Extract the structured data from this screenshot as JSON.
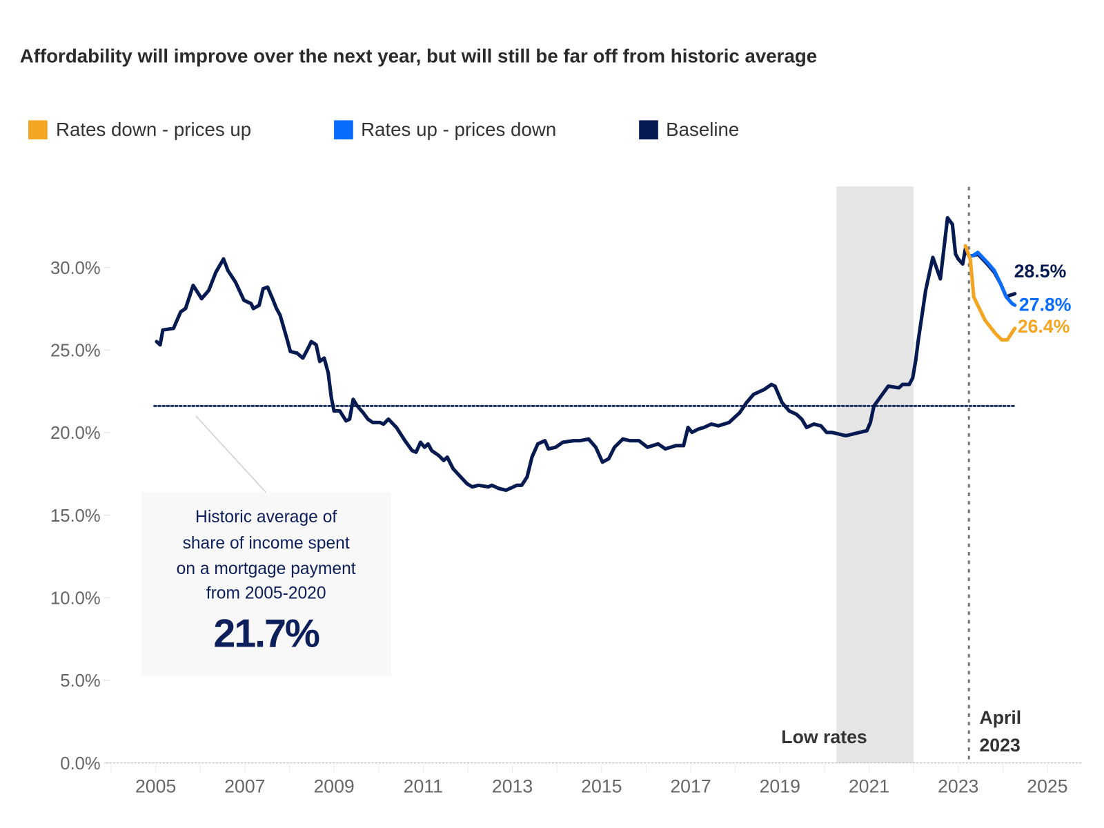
{
  "chart_data": {
    "type": "line",
    "title": "Affordability will improve over the next year, but will still be far off from historic average",
    "xlabel": "",
    "ylabel": "",
    "xlim": [
      2003.9,
      2025.8
    ],
    "ylim": [
      0,
      35
    ],
    "grid": false,
    "legend_placement": "top-left",
    "x_ticks": [
      "2005",
      "2007",
      "2009",
      "2011",
      "2013",
      "2015",
      "2017",
      "2019",
      "2021",
      "2023",
      "2025"
    ],
    "y_ticks": [
      "0.0%",
      "5.0%",
      "10.0%",
      "15.0%",
      "20.0%",
      "25.0%",
      "30.0%"
    ],
    "legend": [
      {
        "label": "Rates down - prices up",
        "color": "#f5a524"
      },
      {
        "label": "Rates up - prices down",
        "color": "#0a6cff"
      },
      {
        "label": "Baseline",
        "color": "#061a52"
      }
    ],
    "series": [
      {
        "name": "Baseline",
        "color": "#061a52",
        "x": [
          2005.02,
          2005.1,
          2005.16,
          2005.4,
          2005.56,
          2005.67,
          2005.84,
          2006.03,
          2006.19,
          2006.35,
          2006.52,
          2006.62,
          2006.79,
          2006.98,
          2007.14,
          2007.19,
          2007.32,
          2007.41,
          2007.51,
          2007.62,
          2007.71,
          2007.79,
          2007.95,
          2008.02,
          2008.17,
          2008.3,
          2008.4,
          2008.49,
          2008.6,
          2008.68,
          2008.78,
          2008.87,
          2008.94,
          2009.0,
          2009.13,
          2009.27,
          2009.35,
          2009.43,
          2009.52,
          2009.65,
          2009.76,
          2009.87,
          2010.03,
          2010.11,
          2010.22,
          2010.4,
          2010.59,
          2010.75,
          2010.84,
          2010.94,
          2011.03,
          2011.11,
          2011.19,
          2011.35,
          2011.46,
          2011.54,
          2011.67,
          2011.98,
          2012.1,
          2012.24,
          2012.46,
          2012.54,
          2012.7,
          2012.86,
          2013.1,
          2013.21,
          2013.33,
          2013.44,
          2013.57,
          2013.73,
          2013.81,
          2013.97,
          2014.13,
          2014.37,
          2014.52,
          2014.71,
          2014.87,
          2015.02,
          2015.16,
          2015.29,
          2015.48,
          2015.63,
          2015.84,
          2016.03,
          2016.27,
          2016.43,
          2016.67,
          2016.84,
          2016.94,
          2017.03,
          2017.17,
          2017.3,
          2017.46,
          2017.62,
          2017.86,
          2018.1,
          2018.25,
          2018.41,
          2018.65,
          2018.81,
          2018.89,
          2019.05,
          2019.21,
          2019.37,
          2019.49,
          2019.6,
          2019.76,
          2019.92,
          2020.05,
          2020.16,
          2020.32,
          2020.48,
          2020.79,
          2020.95,
          2021.03,
          2021.11,
          2021.27,
          2021.43,
          2021.67,
          2021.75,
          2021.9,
          2021.98,
          2022.05,
          2022.1,
          2022.27,
          2022.43,
          2022.6,
          2022.76,
          2022.87,
          2022.94,
          2023.0,
          2023.1,
          2023.16,
          2023.24,
          2023.33,
          2023.44,
          2023.65,
          2023.81,
          2023.95,
          2024.08,
          2024.16,
          2024.27
        ],
        "y": [
          25.6,
          25.4,
          26.3,
          26.4,
          27.4,
          27.6,
          29.0,
          28.2,
          28.7,
          29.8,
          30.6,
          29.9,
          29.2,
          28.1,
          27.9,
          27.6,
          27.8,
          28.8,
          28.9,
          28.2,
          27.6,
          27.2,
          25.7,
          25.0,
          24.9,
          24.6,
          25.1,
          25.6,
          25.4,
          24.4,
          24.6,
          23.7,
          22.2,
          21.4,
          21.4,
          20.8,
          20.9,
          22.1,
          21.7,
          21.3,
          20.9,
          20.7,
          20.7,
          20.6,
          20.9,
          20.4,
          19.6,
          19.0,
          18.9,
          19.5,
          19.2,
          19.4,
          19.0,
          18.7,
          18.4,
          18.6,
          17.9,
          17.0,
          16.8,
          16.9,
          16.8,
          16.9,
          16.7,
          16.6,
          16.9,
          16.9,
          17.4,
          18.6,
          19.4,
          19.6,
          19.1,
          19.2,
          19.5,
          19.6,
          19.6,
          19.7,
          19.2,
          18.3,
          18.5,
          19.2,
          19.7,
          19.6,
          19.6,
          19.2,
          19.4,
          19.1,
          19.3,
          19.3,
          20.4,
          20.1,
          20.3,
          20.4,
          20.6,
          20.5,
          20.7,
          21.3,
          21.9,
          22.4,
          22.7,
          23.0,
          22.9,
          21.9,
          21.4,
          21.2,
          20.9,
          20.4,
          20.6,
          20.5,
          20.1,
          20.1,
          20.0,
          19.9,
          20.1,
          20.2,
          20.7,
          21.7,
          22.3,
          22.9,
          22.8,
          23.0,
          23.0,
          23.4,
          24.5,
          25.6,
          28.7,
          30.7,
          29.4,
          33.1,
          32.7,
          30.9,
          30.6,
          30.3,
          31.2,
          30.8,
          30.8,
          30.9,
          30.3,
          29.8,
          29.1,
          28.3,
          28.4,
          28.5
        ]
      },
      {
        "name": "Rates up - prices down",
        "color": "#0a6cff",
        "x": [
          2023.24,
          2023.33,
          2023.44,
          2023.65,
          2023.81,
          2023.95,
          2024.08,
          2024.21,
          2024.27
        ],
        "y": [
          30.8,
          30.8,
          31.0,
          30.4,
          29.9,
          29.1,
          28.3,
          27.9,
          27.8
        ]
      },
      {
        "name": "Rates down - prices up",
        "color": "#f5a524",
        "x": [
          2023.16,
          2023.27,
          2023.35,
          2023.6,
          2023.83,
          2023.98,
          2024.1,
          2024.27
        ],
        "y": [
          31.4,
          30.6,
          28.3,
          26.9,
          26.1,
          25.7,
          25.7,
          26.4
        ]
      }
    ],
    "end_labels": [
      {
        "text": "28.5%",
        "color": "#061a52"
      },
      {
        "text": "27.8%",
        "color": "#0a6cff"
      },
      {
        "text": "26.4%",
        "color": "#f5a524"
      }
    ],
    "reference_line": {
      "value": 21.7,
      "color": "#1b2f5e"
    },
    "annotation": {
      "lines": [
        "Historic average of",
        "share of income spent",
        "on a mortgage payment",
        "from 2005-2020"
      ],
      "value": "21.7%"
    },
    "shaded_region": {
      "x": [
        2020.27,
        2022.0
      ],
      "label": "Low rates",
      "color": "#e5e5e5"
    },
    "vertical_marker": {
      "x": 2023.24,
      "label_lines": [
        "April",
        "2023"
      ],
      "color": "#777777"
    }
  }
}
